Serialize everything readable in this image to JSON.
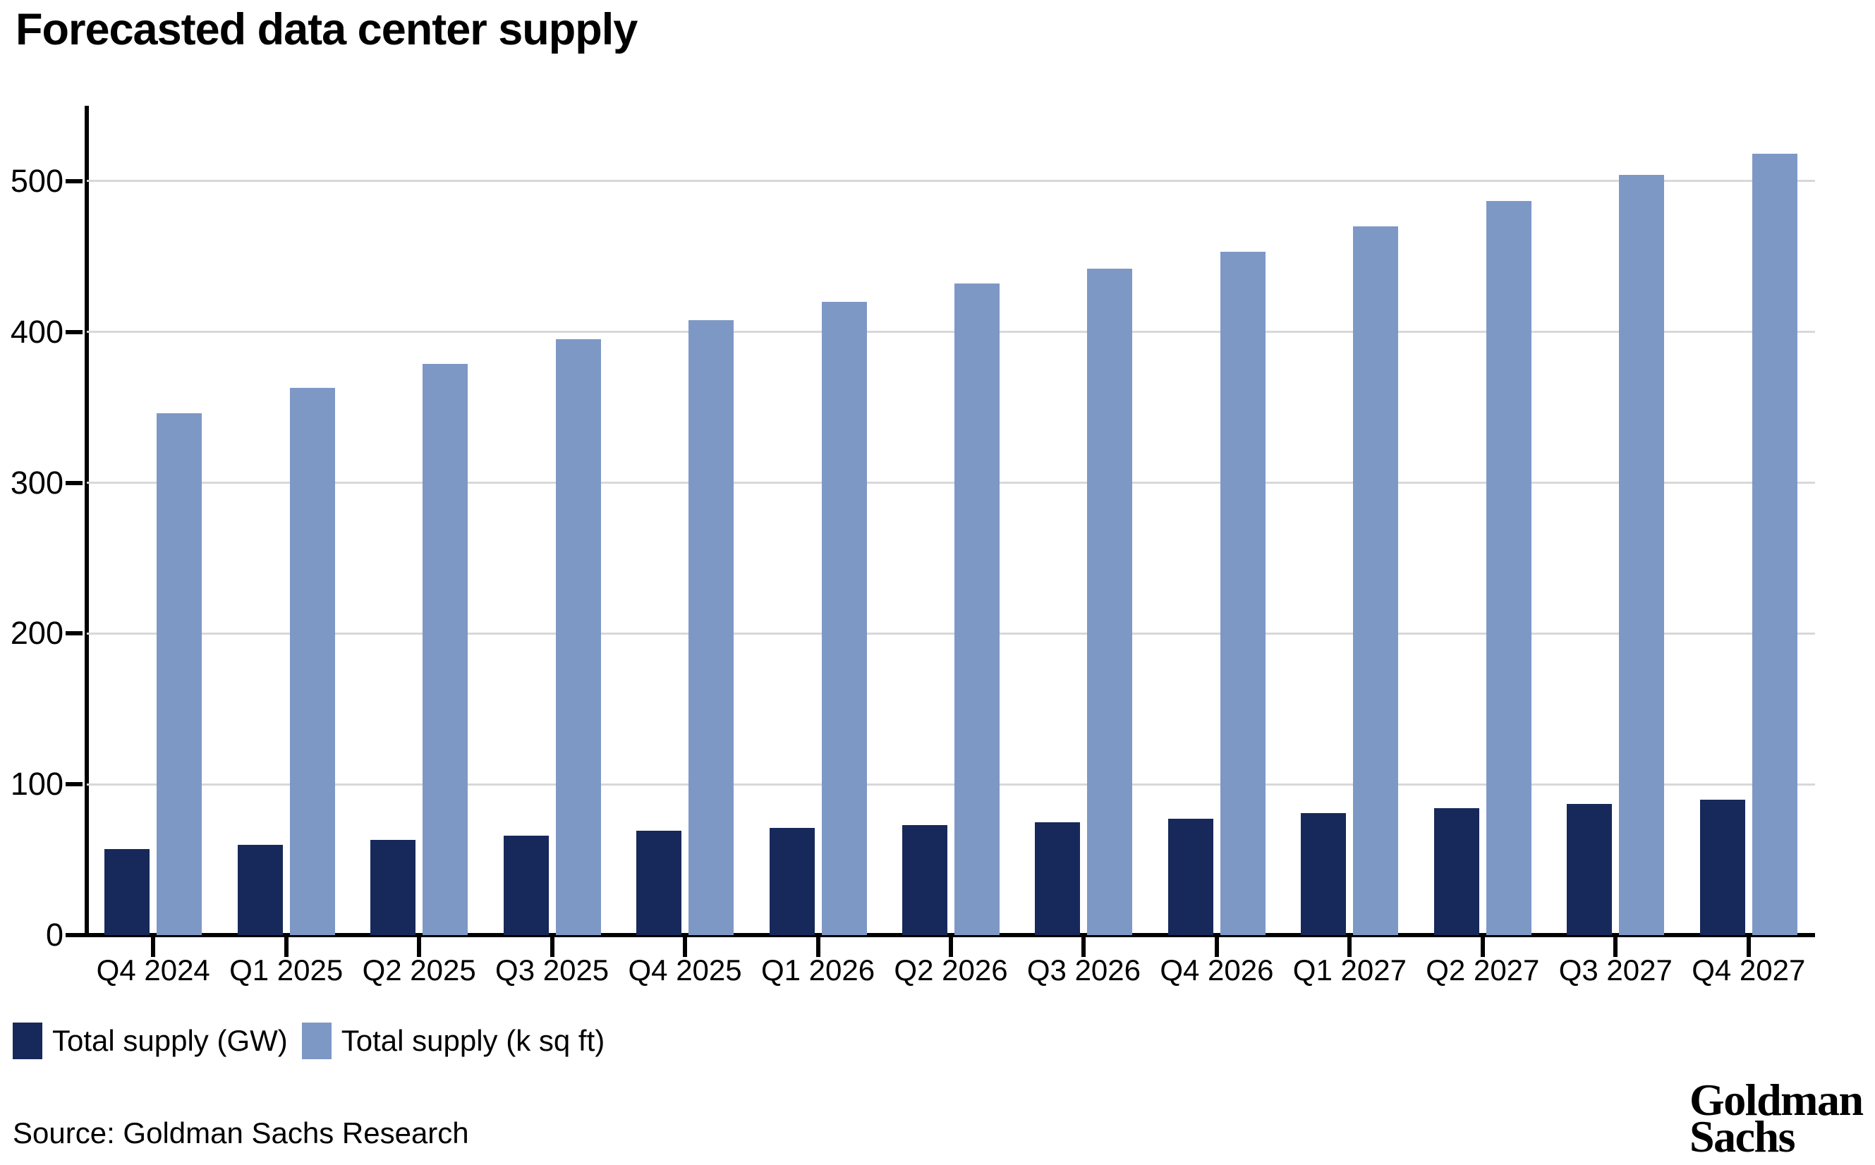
{
  "title": "Forecasted data center supply",
  "source": "Source: Goldman Sachs Research",
  "logo": {
    "line1": "Goldman",
    "line2": "Sachs"
  },
  "colors": {
    "bar_gw": "#17295A",
    "bar_ksqft": "#7E98C6",
    "gridline": "#D8D8D8",
    "axis": "#000000"
  },
  "legend": [
    {
      "label": "Total supply (GW)",
      "color": "#17295A"
    },
    {
      "label": "Total supply (k sq ft)",
      "color": "#7E98C6"
    }
  ],
  "chart_data": {
    "type": "bar",
    "title": "Forecasted data center supply",
    "categories": [
      "Q4 2024",
      "Q1 2025",
      "Q2 2025",
      "Q3 2025",
      "Q4 2025",
      "Q1 2026",
      "Q2 2026",
      "Q3 2026",
      "Q4 2026",
      "Q1 2027",
      "Q2 2027",
      "Q3 2027",
      "Q4 2027"
    ],
    "series": [
      {
        "name": "Total supply (GW)",
        "color": "#17295A",
        "values": [
          57,
          60,
          63,
          66,
          69,
          71,
          73,
          75,
          77,
          81,
          84,
          87,
          90
        ]
      },
      {
        "name": "Total supply (k sq ft)",
        "color": "#7E98C6",
        "values": [
          346,
          363,
          379,
          395,
          408,
          420,
          432,
          442,
          453,
          470,
          487,
          504,
          518
        ]
      }
    ],
    "xlabel": "",
    "ylabel": "",
    "yticks": [
      0,
      100,
      200,
      300,
      400,
      500
    ],
    "ylim": [
      0,
      550
    ],
    "grid": true,
    "legend_position": "bottom-left"
  }
}
